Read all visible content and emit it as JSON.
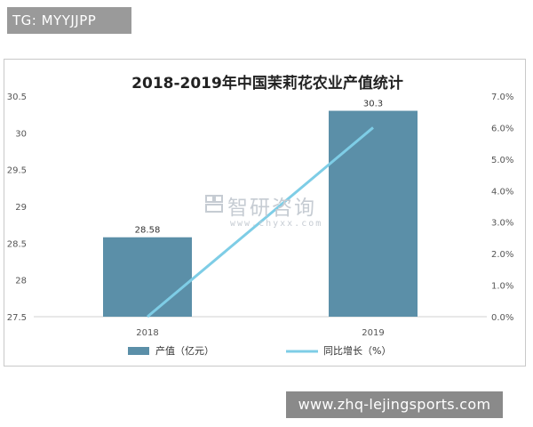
{
  "overlay": {
    "tag_text": "TG: MYYJJPP",
    "url_text": "www.zhq-lejingsports.com",
    "watermark_text": "智研咨询",
    "watermark_sub": "www.chyxx.com"
  },
  "colors": {
    "bar": "#5b8fa8",
    "line": "#7ecde6",
    "axis_text": "#555555",
    "title": "#222222"
  },
  "chart_data": {
    "type": "bar",
    "title": "2018-2019年中国茉莉花农业产值统计",
    "categories": [
      "2018",
      "2019"
    ],
    "series": [
      {
        "name": "产值（亿元）",
        "type": "bar",
        "axis": "left",
        "values": [
          28.58,
          30.3
        ],
        "labels": [
          "28.58",
          "30.3"
        ]
      },
      {
        "name": "同比增长（%）",
        "type": "line",
        "axis": "right",
        "values": [
          0.0,
          6.0
        ]
      }
    ],
    "ylim_left": [
      27.5,
      30.5
    ],
    "yticks_left": [
      "27.5",
      "28",
      "28.5",
      "29",
      "29.5",
      "30",
      "30.5"
    ],
    "ylim_right": [
      0,
      7
    ],
    "yticks_right": [
      "0.0%",
      "1.0%",
      "2.0%",
      "3.0%",
      "4.0%",
      "5.0%",
      "6.0%",
      "7.0%"
    ],
    "legend_position": "bottom"
  }
}
